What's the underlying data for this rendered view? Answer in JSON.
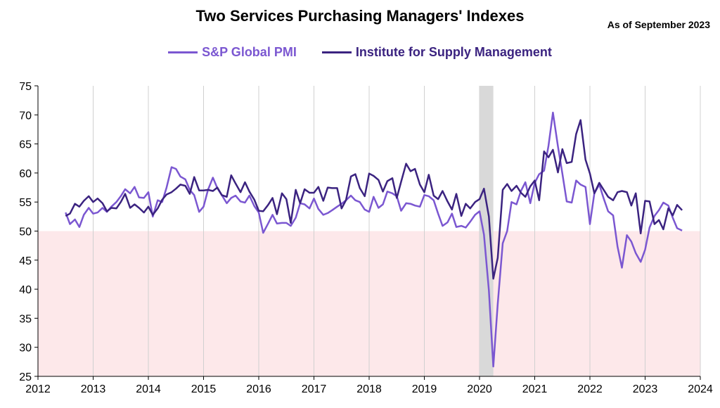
{
  "title": "Two Services Purchasing Managers' Indexes",
  "as_of": "As of September 2023",
  "colors": {
    "sp": "#7b57d1",
    "ism": "#3b2380",
    "contraction_band": "#fde8ea",
    "recession": "#d9d9d9"
  },
  "chart_data": {
    "type": "line",
    "title": "Two Services Purchasing Managers' Indexes",
    "xlim": [
      2012,
      2024
    ],
    "ylim": [
      25,
      75
    ],
    "x_ticks": [
      "2012",
      "2013",
      "2014",
      "2015",
      "2016",
      "2017",
      "2018",
      "2019",
      "2020",
      "2021",
      "2022",
      "2023",
      "2024"
    ],
    "y_ticks": [
      "25",
      "30",
      "35",
      "40",
      "45",
      "50",
      "55",
      "60",
      "65",
      "70",
      "75"
    ],
    "grid": "vertical",
    "legend": "top-center",
    "shaded_region_below": 50,
    "recession_band": [
      2020.0,
      2020.25
    ],
    "series": [
      {
        "name": "S&P Global PMI",
        "x": [
          2012.5,
          2012.58,
          2012.67,
          2012.75,
          2012.83,
          2012.92,
          2013.0,
          2013.08,
          2013.17,
          2013.25,
          2013.33,
          2013.42,
          2013.5,
          2013.58,
          2013.67,
          2013.75,
          2013.83,
          2013.92,
          2014.0,
          2014.08,
          2014.17,
          2014.25,
          2014.33,
          2014.42,
          2014.5,
          2014.58,
          2014.67,
          2014.75,
          2014.83,
          2014.92,
          2015.0,
          2015.08,
          2015.17,
          2015.25,
          2015.33,
          2015.42,
          2015.5,
          2015.58,
          2015.67,
          2015.75,
          2015.83,
          2015.92,
          2016.0,
          2016.08,
          2016.17,
          2016.25,
          2016.33,
          2016.42,
          2016.5,
          2016.58,
          2016.67,
          2016.75,
          2016.83,
          2016.92,
          2017.0,
          2017.08,
          2017.17,
          2017.25,
          2017.33,
          2017.42,
          2017.5,
          2017.58,
          2017.67,
          2017.75,
          2017.83,
          2017.92,
          2018.0,
          2018.08,
          2018.17,
          2018.25,
          2018.33,
          2018.42,
          2018.5,
          2018.58,
          2018.67,
          2018.75,
          2018.83,
          2018.92,
          2019.0,
          2019.08,
          2019.17,
          2019.25,
          2019.33,
          2019.42,
          2019.5,
          2019.58,
          2019.67,
          2019.75,
          2019.83,
          2019.92,
          2020.0,
          2020.08,
          2020.17,
          2020.25,
          2020.33,
          2020.42,
          2020.5,
          2020.58,
          2020.67,
          2020.75,
          2020.83,
          2020.92,
          2021.0,
          2021.08,
          2021.17,
          2021.25,
          2021.33,
          2021.42,
          2021.5,
          2021.58,
          2021.67,
          2021.75,
          2021.83,
          2021.92,
          2022.0,
          2022.08,
          2022.17,
          2022.25,
          2022.33,
          2022.42,
          2022.5,
          2022.58,
          2022.67,
          2022.75,
          2022.83,
          2022.92,
          2023.0,
          2023.08,
          2023.17,
          2023.25,
          2023.33,
          2023.42,
          2023.5,
          2023.58,
          2023.67
        ],
        "values": [
          53.2,
          51.2,
          52.0,
          50.7,
          52.8,
          54.0,
          53.0,
          53.2,
          54.0,
          53.3,
          54.2,
          55.0,
          56.0,
          57.2,
          56.5,
          57.6,
          55.8,
          55.7,
          56.7,
          52.5,
          55.3,
          55.0,
          57.5,
          61.0,
          60.7,
          59.4,
          58.9,
          57.1,
          56.2,
          53.3,
          54.2,
          57.1,
          59.2,
          57.4,
          56.2,
          54.8,
          55.7,
          56.1,
          55.1,
          54.9,
          56.1,
          54.3,
          53.2,
          49.7,
          51.3,
          52.8,
          51.3,
          51.4,
          51.4,
          50.9,
          52.3,
          54.8,
          54.6,
          53.9,
          55.6,
          53.8,
          52.8,
          53.1,
          53.6,
          54.2,
          54.7,
          55.3,
          56.1,
          55.3,
          55.0,
          53.7,
          53.3,
          55.9,
          54.0,
          54.6,
          56.8,
          56.5,
          56.0,
          53.5,
          54.8,
          54.7,
          54.4,
          54.2,
          56.2,
          56.0,
          55.3,
          53.0,
          50.9,
          51.5,
          53.0,
          50.7,
          50.9,
          50.6,
          51.6,
          52.8,
          53.4,
          49.4,
          39.8,
          26.7,
          37.5,
          47.9,
          50.0,
          55.0,
          54.6,
          56.9,
          58.4,
          54.8,
          58.3,
          59.8,
          60.4,
          64.7,
          70.4,
          64.6,
          59.9,
          55.1,
          54.9,
          58.7,
          58.0,
          57.6,
          51.2,
          56.5,
          58.0,
          55.6,
          53.4,
          52.7,
          47.3,
          43.7,
          49.3,
          48.2,
          46.2,
          44.7,
          46.8,
          50.6,
          52.6,
          53.6,
          54.9,
          54.4,
          52.3,
          50.5,
          50.1
        ]
      },
      {
        "name": "Institute for Supply Management",
        "x": [
          2012.5,
          2012.58,
          2012.67,
          2012.75,
          2012.83,
          2012.92,
          2013.0,
          2013.08,
          2013.17,
          2013.25,
          2013.33,
          2013.42,
          2013.5,
          2013.58,
          2013.67,
          2013.75,
          2013.83,
          2013.92,
          2014.0,
          2014.08,
          2014.17,
          2014.25,
          2014.33,
          2014.42,
          2014.5,
          2014.58,
          2014.67,
          2014.75,
          2014.83,
          2014.92,
          2015.0,
          2015.08,
          2015.17,
          2015.25,
          2015.33,
          2015.42,
          2015.5,
          2015.58,
          2015.67,
          2015.75,
          2015.83,
          2015.92,
          2016.0,
          2016.08,
          2016.17,
          2016.25,
          2016.33,
          2016.42,
          2016.5,
          2016.58,
          2016.67,
          2016.75,
          2016.83,
          2016.92,
          2017.0,
          2017.08,
          2017.17,
          2017.25,
          2017.33,
          2017.42,
          2017.5,
          2017.58,
          2017.67,
          2017.75,
          2017.83,
          2017.92,
          2018.0,
          2018.08,
          2018.17,
          2018.25,
          2018.33,
          2018.42,
          2018.5,
          2018.58,
          2018.67,
          2018.75,
          2018.83,
          2018.92,
          2019.0,
          2019.08,
          2019.17,
          2019.25,
          2019.33,
          2019.42,
          2019.5,
          2019.58,
          2019.67,
          2019.75,
          2019.83,
          2019.92,
          2020.0,
          2020.08,
          2020.17,
          2020.25,
          2020.33,
          2020.42,
          2020.5,
          2020.58,
          2020.67,
          2020.75,
          2020.83,
          2020.92,
          2021.0,
          2021.08,
          2021.17,
          2021.25,
          2021.33,
          2021.42,
          2021.5,
          2021.58,
          2021.67,
          2021.75,
          2021.83,
          2021.92,
          2022.0,
          2022.08,
          2022.17,
          2022.25,
          2022.33,
          2022.42,
          2022.5,
          2022.58,
          2022.67,
          2022.75,
          2022.83,
          2022.92,
          2023.0,
          2023.08,
          2023.17,
          2023.25,
          2023.33,
          2023.42,
          2023.5,
          2023.58,
          2023.67
        ],
        "values": [
          52.6,
          53.0,
          54.7,
          54.2,
          55.2,
          56.0,
          55.0,
          55.6,
          54.8,
          53.4,
          54.0,
          53.9,
          55.0,
          56.4,
          54.0,
          54.6,
          54.0,
          53.2,
          54.2,
          52.8,
          53.9,
          55.4,
          56.3,
          56.7,
          57.3,
          58.0,
          57.8,
          56.4,
          59.3,
          57.0,
          57.0,
          57.1,
          56.9,
          57.5,
          56.2,
          55.9,
          59.6,
          58.2,
          56.7,
          58.4,
          56.8,
          55.4,
          53.5,
          53.4,
          54.5,
          55.7,
          52.9,
          56.5,
          55.5,
          51.4,
          57.1,
          54.8,
          57.2,
          56.6,
          56.6,
          57.6,
          55.2,
          57.5,
          57.4,
          57.4,
          53.9,
          55.3,
          59.4,
          59.8,
          57.4,
          56.0,
          59.9,
          59.5,
          58.8,
          56.8,
          58.6,
          59.1,
          55.7,
          58.5,
          61.6,
          60.3,
          60.7,
          58.0,
          56.7,
          59.7,
          56.1,
          55.5,
          56.9,
          55.1,
          53.7,
          56.4,
          52.6,
          54.7,
          53.9,
          55.0,
          55.5,
          57.3,
          52.5,
          41.8,
          45.4,
          57.1,
          58.1,
          56.9,
          57.8,
          56.6,
          55.9,
          57.7,
          58.7,
          55.3,
          63.7,
          62.7,
          64.0,
          60.1,
          64.1,
          61.7,
          61.9,
          66.7,
          69.1,
          62.3,
          59.9,
          56.5,
          58.3,
          57.1,
          55.9,
          55.3,
          56.7,
          56.9,
          56.7,
          54.4,
          56.5,
          49.6,
          55.2,
          55.1,
          51.2,
          51.9,
          50.3,
          53.9,
          52.7,
          54.5,
          53.6
        ]
      }
    ]
  }
}
